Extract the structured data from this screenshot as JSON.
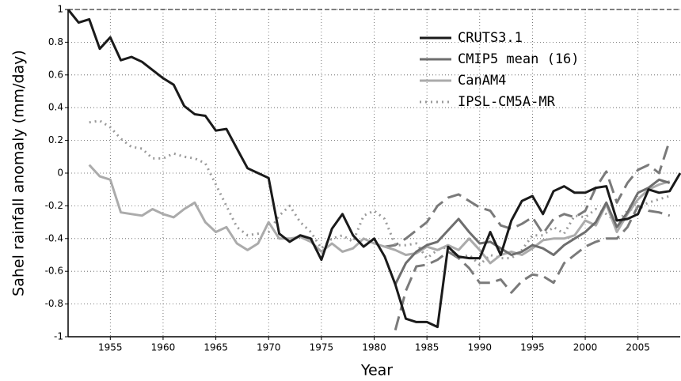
{
  "chart_data": {
    "type": "line",
    "xlabel": "Year",
    "ylabel": "Sahel rainfall anomaly (mm/day)",
    "xlim": [
      1951,
      2009
    ],
    "ylim": [
      -1,
      1
    ],
    "xticks": [
      1955,
      1960,
      1965,
      1970,
      1975,
      1980,
      1985,
      1990,
      1995,
      2000,
      2005
    ],
    "yticks": [
      -1,
      -0.8,
      -0.6,
      -0.4,
      -0.2,
      0,
      0.2,
      0.4,
      0.6,
      0.8,
      1
    ],
    "grid": true,
    "legend": "upper right",
    "x": [
      1951,
      1952,
      1953,
      1954,
      1955,
      1956,
      1957,
      1958,
      1959,
      1960,
      1961,
      1962,
      1963,
      1964,
      1965,
      1966,
      1967,
      1968,
      1969,
      1970,
      1971,
      1972,
      1973,
      1974,
      1975,
      1976,
      1977,
      1978,
      1979,
      1980,
      1981,
      1982,
      1983,
      1984,
      1985,
      1986,
      1987,
      1988,
      1989,
      1990,
      1991,
      1992,
      1993,
      1994,
      1995,
      1996,
      1997,
      1998,
      1999,
      2000,
      2001,
      2002,
      2003,
      2004,
      2005,
      2006,
      2007,
      2008,
      2009
    ],
    "series": [
      {
        "color": "#7a7a7a",
        "width": 3,
        "dash": "18,8",
        "values": [
          null,
          null,
          null,
          null,
          null,
          null,
          null,
          null,
          null,
          null,
          null,
          null,
          null,
          null,
          null,
          null,
          null,
          null,
          null,
          null,
          null,
          null,
          null,
          null,
          null,
          null,
          null,
          null,
          null,
          null,
          -0.45,
          -0.44,
          -0.4,
          -0.35,
          -0.3,
          -0.2,
          -0.15,
          -0.13,
          -0.17,
          -0.21,
          -0.23,
          -0.32,
          -0.34,
          -0.31,
          -0.27,
          -0.37,
          -0.28,
          -0.25,
          -0.27,
          -0.23,
          -0.09,
          0.01,
          -0.18,
          -0.06,
          0.02,
          0.05,
          0,
          0.2,
          null
        ]
      },
      {
        "color": "#7a7a7a",
        "width": 3,
        "dash": "18,8",
        "values": [
          null,
          null,
          null,
          null,
          null,
          null,
          null,
          null,
          null,
          null,
          null,
          null,
          null,
          null,
          null,
          null,
          null,
          null,
          null,
          null,
          null,
          null,
          null,
          null,
          null,
          null,
          null,
          null,
          null,
          null,
          null,
          -0.96,
          -0.72,
          -0.57,
          -0.56,
          -0.53,
          -0.48,
          -0.52,
          -0.58,
          -0.67,
          -0.67,
          -0.65,
          -0.73,
          -0.66,
          -0.62,
          -0.63,
          -0.67,
          -0.55,
          -0.5,
          -0.45,
          -0.42,
          -0.4,
          -0.4,
          -0.33,
          -0.2,
          -0.23,
          -0.24,
          -0.26,
          null
        ]
      },
      {
        "name": "IPSL-CM5A-MR",
        "color": "#9a9a9a",
        "width": 3,
        "dash": "2,5",
        "values": [
          null,
          null,
          0.31,
          0.32,
          0.28,
          0.21,
          0.16,
          0.15,
          0.09,
          0.09,
          0.12,
          0.1,
          0.09,
          0.06,
          -0.07,
          -0.2,
          -0.33,
          -0.38,
          -0.37,
          -0.36,
          -0.26,
          -0.2,
          -0.3,
          -0.36,
          -0.46,
          -0.4,
          -0.38,
          -0.42,
          -0.26,
          -0.23,
          -0.28,
          -0.44,
          -0.44,
          -0.43,
          -0.52,
          -0.47,
          -0.45,
          -0.52,
          -0.5,
          -0.56,
          -0.5,
          -0.52,
          -0.52,
          -0.47,
          -0.38,
          -0.38,
          -0.33,
          -0.37,
          -0.26,
          -0.27,
          -0.22,
          -0.25,
          -0.3,
          -0.23,
          -0.21,
          -0.18,
          -0.16,
          -0.14,
          null
        ]
      },
      {
        "name": "CanAM4",
        "color": "#ababab",
        "width": 3,
        "values": [
          null,
          null,
          0.05,
          -0.02,
          -0.04,
          -0.24,
          -0.25,
          -0.26,
          -0.22,
          -0.25,
          -0.27,
          -0.22,
          -0.18,
          -0.3,
          -0.36,
          -0.33,
          -0.43,
          -0.47,
          -0.43,
          -0.3,
          -0.4,
          -0.4,
          -0.39,
          -0.42,
          -0.48,
          -0.43,
          -0.48,
          -0.46,
          -0.4,
          -0.43,
          -0.45,
          -0.47,
          -0.5,
          -0.49,
          -0.45,
          -0.47,
          -0.44,
          -0.47,
          -0.4,
          -0.47,
          -0.55,
          -0.5,
          -0.48,
          -0.5,
          -0.46,
          -0.41,
          -0.4,
          -0.4,
          -0.38,
          -0.29,
          -0.32,
          -0.19,
          -0.36,
          -0.25,
          -0.16,
          -0.1,
          -0.07,
          -0.05,
          null
        ]
      },
      {
        "name": "CMIP5 mean (16)",
        "color": "#6e6e6e",
        "width": 3,
        "values": [
          null,
          null,
          null,
          null,
          null,
          null,
          null,
          null,
          null,
          null,
          null,
          null,
          null,
          null,
          null,
          null,
          null,
          null,
          null,
          null,
          null,
          null,
          null,
          null,
          null,
          null,
          null,
          null,
          null,
          null,
          null,
          -0.68,
          -0.55,
          -0.48,
          -0.44,
          -0.42,
          -0.35,
          -0.28,
          -0.36,
          -0.43,
          -0.42,
          -0.46,
          -0.5,
          -0.48,
          -0.44,
          -0.46,
          -0.5,
          -0.44,
          -0.4,
          -0.36,
          -0.3,
          -0.18,
          -0.33,
          -0.24,
          -0.12,
          -0.09,
          -0.04,
          -0.06,
          null
        ]
      },
      {
        "name": "CRUTS3.1",
        "color": "#1a1a1a",
        "width": 3,
        "values": [
          1,
          0.92,
          0.94,
          0.76,
          0.83,
          0.69,
          0.71,
          0.68,
          0.63,
          0.58,
          0.54,
          0.41,
          0.36,
          0.35,
          0.26,
          0.27,
          0.15,
          0.03,
          0,
          -0.03,
          -0.37,
          -0.42,
          -0.38,
          -0.4,
          -0.53,
          -0.34,
          -0.25,
          -0.38,
          -0.45,
          -0.4,
          -0.51,
          -0.68,
          -0.89,
          -0.91,
          -0.91,
          -0.94,
          -0.45,
          -0.51,
          -0.52,
          -0.52,
          -0.36,
          -0.5,
          -0.29,
          -0.17,
          -0.14,
          -0.25,
          -0.11,
          -0.08,
          -0.12,
          -0.12,
          -0.09,
          -0.08,
          -0.29,
          -0.28,
          -0.25,
          -0.1,
          -0.12,
          -0.11,
          0
        ]
      }
    ]
  }
}
